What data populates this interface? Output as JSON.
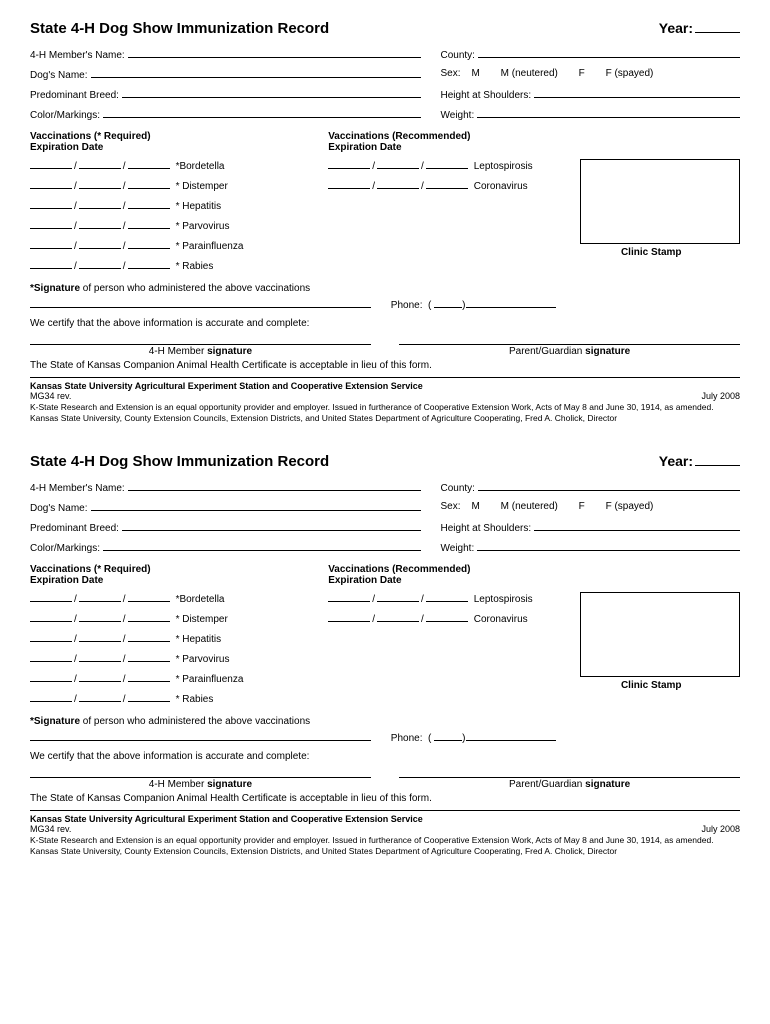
{
  "title": "State 4-H Dog Show Immunization Record",
  "year_label": "Year:",
  "fields": {
    "member_name": "4-H Member's Name:",
    "county": "County:",
    "dog_name": "Dog's Name:",
    "sex": "Sex:",
    "sex_m": "M",
    "sex_mn": "M (neutered)",
    "sex_f": "F",
    "sex_fs": "F (spayed)",
    "breed": "Predominant Breed:",
    "height": "Height at Shoulders:",
    "color": "Color/Markings:",
    "weight": "Weight:"
  },
  "vacc_required_header1": "Vaccinations (* Required)",
  "vacc_required_header2": "Expiration Date",
  "vacc_recommended_header1": "Vaccinations (Recommended)",
  "vacc_recommended_header2": "Expiration Date",
  "required_vaccines": [
    "*Bordetella",
    "* Distemper",
    "* Hepatitis",
    "* Parvovirus",
    "* Parainfluenza",
    "* Rabies"
  ],
  "recommended_vaccines": [
    "Leptospirosis",
    "Coronavirus"
  ],
  "clinic_stamp": "Clinic Stamp",
  "signature_note_prefix": "*Signature",
  "signature_note_rest": " of person who administered the above vaccinations",
  "phone_label": "Phone:",
  "certify_text": "We certify that the above information is accurate and complete:",
  "member_sig_prefix": "4-H Member ",
  "member_sig_bold": "signature",
  "parent_sig_prefix": "Parent/Guardian ",
  "parent_sig_bold": "signature",
  "lieu_text": "The State of Kansas Companion Animal Health Certificate is acceptable in lieu of this form.",
  "footer_org": "Kansas State University Agricultural Experiment Station and Cooperative Extension Service",
  "footer_rev": "MG34 rev.",
  "footer_date": "July 2008",
  "footer_body": "K-State Research and Extension is an equal opportunity provider and employer. Issued in furtherance of Cooperative Extension Work, Acts of May 8 and June 30, 1914, as amended. Kansas State University, County Extension Councils, Extension Districts, and United States Department of Agriculture Cooperating, Fred A. Cholick, Director"
}
